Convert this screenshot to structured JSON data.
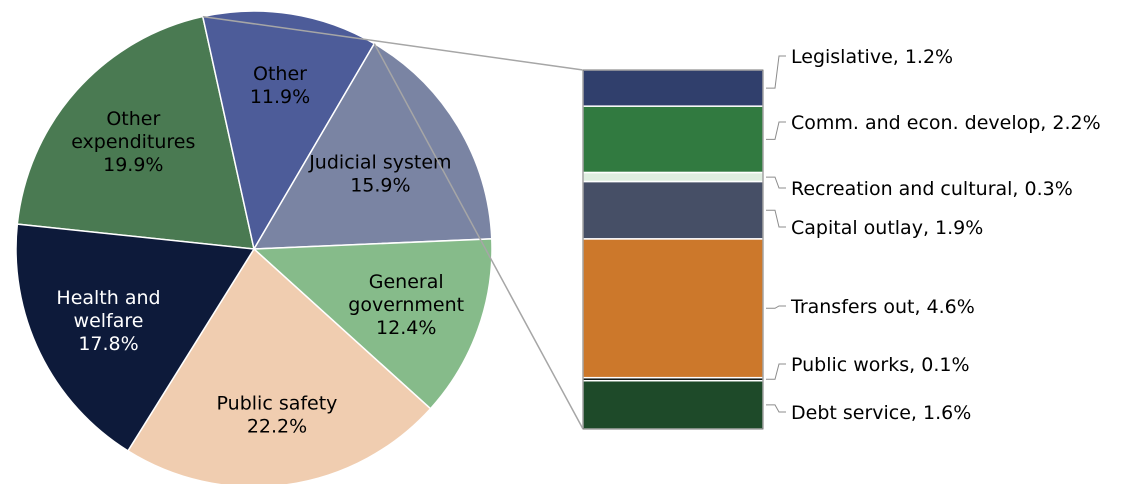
{
  "chart_data": [
    {
      "type": "pie",
      "title": "",
      "slices": [
        {
          "name": "Other expenditures",
          "label_lines": [
            "Other",
            "expenditures",
            "19.9%"
          ],
          "value": 19.9,
          "color": "#4a7a52",
          "text_color": "#000000"
        },
        {
          "name": "Other",
          "label_lines": [
            "Other",
            "11.9%"
          ],
          "value": 11.9,
          "color": "#4d5c99",
          "text_color": "#000000"
        },
        {
          "name": "Judicial system",
          "label_lines": [
            "Judicial system",
            "15.9%"
          ],
          "value": 15.9,
          "color": "#7a84a3",
          "text_color": "#000000"
        },
        {
          "name": "General government",
          "label_lines": [
            "General",
            "government",
            "12.4%"
          ],
          "value": 12.4,
          "color": "#86bb8a",
          "text_color": "#000000"
        },
        {
          "name": "Public safety",
          "label_lines": [
            "Public safety",
            "22.2%"
          ],
          "value": 22.2,
          "color": "#f0cdb0",
          "text_color": "#000000"
        },
        {
          "name": "Health and welfare",
          "label_lines": [
            "Health and",
            "welfare",
            "17.8%"
          ],
          "value": 17.8,
          "color": "#0d1a3a",
          "text_color": "#ffffff"
        }
      ]
    },
    {
      "type": "bar",
      "stacked": true,
      "breakdown_of": "Other",
      "segments": [
        {
          "name": "Legislative",
          "label": "Legislative, 1.2%",
          "value": 1.2,
          "color": "#303f6c"
        },
        {
          "name": "Comm. and econ. develop",
          "label": "Comm. and econ. develop, 2.2%",
          "value": 2.2,
          "color": "#317a40"
        },
        {
          "name": "Recreation and cultural",
          "label": "Recreation and cultural, 0.3%",
          "value": 0.3,
          "color": "#dfeee0"
        },
        {
          "name": "Capital outlay",
          "label": "Capital outlay, 1.9%",
          "value": 1.9,
          "color": "#464f66"
        },
        {
          "name": "Transfers out",
          "label": "Transfers out, 4.6%",
          "value": 4.6,
          "color": "#cc782b"
        },
        {
          "name": "Public works",
          "label": "Public works, 0.1%",
          "value": 0.1,
          "color": "#0b120e"
        },
        {
          "name": "Debt service",
          "label": "Debt service, 1.6%",
          "value": 1.6,
          "color": "#1e4a29"
        }
      ]
    }
  ]
}
